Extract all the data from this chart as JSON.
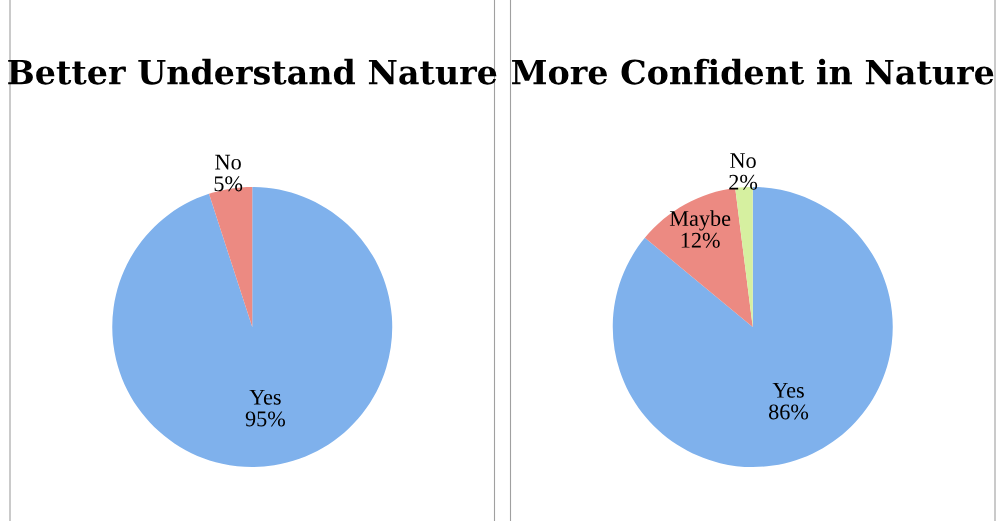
{
  "chart_data": [
    {
      "type": "pie",
      "title": "Better Understand Nature",
      "categories": [
        "Yes",
        "No"
      ],
      "values": [
        95,
        5
      ],
      "value_labels": [
        "95%",
        "5%"
      ],
      "colors": [
        "#7fb1ec",
        "#ec8a82"
      ]
    },
    {
      "type": "pie",
      "title": "More Confident in Nature",
      "categories": [
        "Yes",
        "Maybe",
        "No"
      ],
      "values": [
        86,
        12,
        2
      ],
      "value_labels": [
        "86%",
        "12%",
        "2%"
      ],
      "colors": [
        "#7fb1ec",
        "#ec8a82",
        "#d6f0a0"
      ]
    }
  ]
}
